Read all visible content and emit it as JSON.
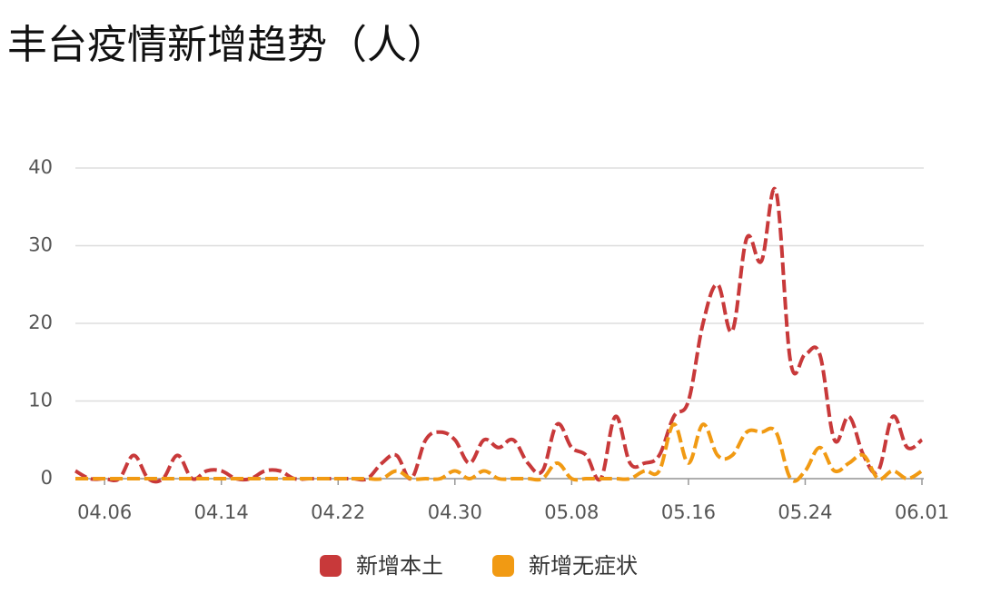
{
  "chart_data": {
    "type": "line",
    "title": "丰台疫情新增趋势（人）",
    "categories": [
      null,
      null,
      "04.06",
      null,
      null,
      null,
      null,
      null,
      null,
      null,
      "04.14",
      null,
      null,
      null,
      null,
      null,
      null,
      null,
      "04.22",
      null,
      null,
      null,
      null,
      null,
      null,
      null,
      "04.30",
      null,
      null,
      null,
      null,
      null,
      null,
      null,
      "05.08",
      null,
      null,
      null,
      null,
      null,
      null,
      null,
      "05.16",
      null,
      null,
      null,
      null,
      null,
      null,
      null,
      "05.24",
      null,
      null,
      null,
      null,
      null,
      null,
      null,
      "06.01"
    ],
    "series": [
      {
        "name": "新增本土",
        "color": "#c8393a",
        "values": [
          1,
          0,
          0,
          0,
          3,
          0,
          0,
          3,
          0,
          1,
          1,
          0,
          0,
          1,
          1,
          0,
          0,
          0,
          0,
          0,
          0,
          2,
          3,
          0,
          5,
          6,
          5,
          2,
          5,
          4,
          5,
          2,
          1,
          7,
          4,
          3,
          0,
          8,
          2,
          2,
          3,
          8,
          10,
          20,
          25,
          19,
          31,
          28,
          37,
          15,
          16,
          16,
          5,
          8,
          3,
          1,
          8,
          4,
          5
        ]
      },
      {
        "name": "新增无症状",
        "color": "#f19a13",
        "values": [
          0,
          0,
          0,
          0,
          0,
          0,
          0,
          0,
          0,
          0,
          0,
          0,
          0,
          0,
          0,
          0,
          0,
          0,
          0,
          0,
          0,
          0,
          1,
          0,
          0,
          0,
          1,
          0,
          1,
          0,
          0,
          0,
          0,
          2,
          0,
          0,
          0,
          0,
          0,
          1,
          1,
          7,
          2,
          7,
          3,
          3,
          6,
          6,
          6,
          0,
          1,
          4,
          1,
          2,
          3,
          0,
          1,
          0,
          1
        ]
      }
    ],
    "ylim": [
      0,
      40
    ],
    "yticks": [
      0,
      10,
      20,
      30,
      40
    ],
    "grid": true,
    "dashed": true
  }
}
